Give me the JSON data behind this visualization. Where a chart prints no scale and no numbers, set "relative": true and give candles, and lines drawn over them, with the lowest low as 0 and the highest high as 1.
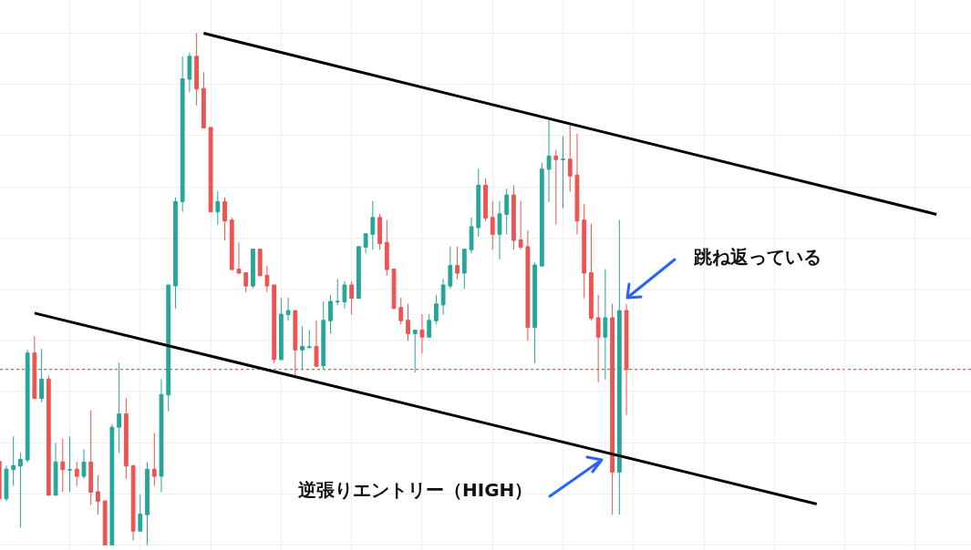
{
  "chart_data": {
    "type": "candlestick",
    "relative": true,
    "grid": true,
    "categories": [
      null,
      null,
      null,
      null,
      null,
      null,
      null,
      null,
      null,
      null,
      null,
      null,
      null,
      null,
      null,
      null,
      null,
      null,
      null,
      null,
      null,
      null,
      null,
      null,
      null,
      null,
      null,
      null,
      null,
      null,
      null,
      null,
      null,
      null,
      null,
      null,
      null,
      null,
      null,
      null,
      null,
      null,
      null,
      null,
      null,
      null,
      null,
      null,
      null,
      null,
      null,
      null,
      null,
      null,
      null,
      null,
      null,
      null,
      null,
      null,
      null,
      null,
      null,
      null,
      null,
      null,
      null,
      null,
      null,
      null,
      null,
      null,
      null,
      null,
      null,
      null,
      null,
      null,
      null,
      null,
      null,
      null,
      null,
      null,
      null,
      null,
      null,
      null,
      null,
      null,
      null,
      null,
      null,
      null,
      null,
      null,
      null,
      null,
      null,
      null,
      null,
      null,
      null,
      null,
      null,
      null,
      null,
      null,
      null,
      null,
      null,
      null,
      null,
      null,
      null,
      null,
      null,
      null,
      null,
      null,
      null,
      null,
      null,
      null,
      null,
      null,
      null,
      null,
      null,
      null,
      null,
      null,
      null,
      null,
      null,
      null,
      null,
      null,
      null
    ],
    "ohlc": [
      [
        0.163,
        0.163,
        0.09,
        0.09
      ],
      [
        0.09,
        0.155,
        0.085,
        0.148
      ],
      [
        0.147,
        0.212,
        0.115,
        0.155
      ],
      [
        0.154,
        0.18,
        0.034,
        0.167
      ],
      [
        0.166,
        0.382,
        0.161,
        0.375
      ],
      [
        0.375,
        0.408,
        0.286,
        0.286
      ],
      [
        0.286,
        0.383,
        0.279,
        0.324
      ],
      [
        0.324,
        0.331,
        0.097,
        0.097
      ],
      [
        0.097,
        0.199,
        0.097,
        0.162
      ],
      [
        0.162,
        0.207,
        0.103,
        0.147
      ],
      [
        0.146,
        0.212,
        0.103,
        0.147
      ],
      [
        0.148,
        0.162,
        0.115,
        0.134
      ],
      [
        0.134,
        0.187,
        0.129,
        0.162
      ],
      [
        0.162,
        0.263,
        0.078,
        0.103
      ],
      [
        0.104,
        0.136,
        0.059,
        0.085
      ],
      [
        0.086,
        0.086,
        0,
        0
      ],
      [
        0,
        0.236,
        0,
        0.23
      ],
      [
        0.23,
        0.356,
        0.179,
        0.256
      ],
      [
        0.256,
        0.287,
        0.129,
        0.154
      ],
      [
        0.155,
        0.155,
        0.009,
        0.027
      ],
      [
        0.027,
        0.099,
        0.027,
        0.06
      ],
      [
        0.059,
        0.162,
        0,
        0.148
      ],
      [
        0.148,
        0.219,
        0.115,
        0.134
      ],
      [
        0.134,
        0.324,
        0.103,
        0.294
      ],
      [
        0.293,
        0.508,
        0.261,
        0.508
      ],
      [
        0.506,
        0.679,
        0.462,
        0.671
      ],
      [
        0.671,
        0.955,
        0.651,
        0.911
      ],
      [
        0.91,
        0.962,
        0.885,
        0.955
      ],
      [
        0.955,
        1,
        0.859,
        0.891
      ],
      [
        0.892,
        0.924,
        0.815,
        0.815
      ],
      [
        0.816,
        0.816,
        0.651,
        0.651
      ],
      [
        0.651,
        0.691,
        0.626,
        0.671
      ],
      [
        0.671,
        0.679,
        0.595,
        0.633
      ],
      [
        0.635,
        0.64,
        0.538,
        0.538
      ],
      [
        0.539,
        0.591,
        0.531,
        0.531
      ],
      [
        0.532,
        0.532,
        0.494,
        0.506
      ],
      [
        0.506,
        0.578,
        0.502,
        0.578
      ],
      [
        0.578,
        0.578,
        0.526,
        0.526
      ],
      [
        0.527,
        0.546,
        0.494,
        0.506
      ],
      [
        0.508,
        0.508,
        0.355,
        0.362
      ],
      [
        0.362,
        0.483,
        0.362,
        0.451
      ],
      [
        0.45,
        0.483,
        0.438,
        0.458
      ],
      [
        0.458,
        0.458,
        0.33,
        0.381
      ],
      [
        0.381,
        0.427,
        0.343,
        0.388
      ],
      [
        0.386,
        0.42,
        0.383,
        0.387
      ],
      [
        0.388,
        0.439,
        0.349,
        0.349
      ],
      [
        0.35,
        0.476,
        0.343,
        0.439
      ],
      [
        0.438,
        0.488,
        0.413,
        0.476
      ],
      [
        0.475,
        0.52,
        0.469,
        0.476
      ],
      [
        0.475,
        0.515,
        0.462,
        0.508
      ],
      [
        0.508,
        0.515,
        0.45,
        0.482
      ],
      [
        0.482,
        0.583,
        0.482,
        0.583
      ],
      [
        0.582,
        0.608,
        0.57,
        0.608
      ],
      [
        0.607,
        0.672,
        0.577,
        0.64
      ],
      [
        0.64,
        0.647,
        0.577,
        0.589
      ],
      [
        0.591,
        0.635,
        0.526,
        0.538
      ],
      [
        0.539,
        0.539,
        0.462,
        0.462
      ],
      [
        0.464,
        0.483,
        0.431,
        0.438
      ],
      [
        0.439,
        0.471,
        0.399,
        0.413
      ],
      [
        0.413,
        0.42,
        0.337,
        0.42
      ],
      [
        0.42,
        0.451,
        0.374,
        0.406
      ],
      [
        0.406,
        0.451,
        0.406,
        0.439
      ],
      [
        0.438,
        0.488,
        0.431,
        0.471
      ],
      [
        0.469,
        0.52,
        0.45,
        0.508
      ],
      [
        0.506,
        0.583,
        0.501,
        0.546
      ],
      [
        0.546,
        0.583,
        0.519,
        0.531
      ],
      [
        0.531,
        0.578,
        0.501,
        0.578
      ],
      [
        0.577,
        0.64,
        0.57,
        0.622
      ],
      [
        0.62,
        0.735,
        0.602,
        0.703
      ],
      [
        0.703,
        0.716,
        0.633,
        0.639
      ],
      [
        0.64,
        0.672,
        0.577,
        0.607
      ],
      [
        0.607,
        0.672,
        0.558,
        0.647
      ],
      [
        0.646,
        0.696,
        0.607,
        0.684
      ],
      [
        0.684,
        0.703,
        0.577,
        0.595
      ],
      [
        0.596,
        0.672,
        0.577,
        0.582
      ],
      [
        0.583,
        0.615,
        0.399,
        0.425
      ],
      [
        0.425,
        0.552,
        0.355,
        0.547
      ],
      [
        0.545,
        0.747,
        0.545,
        0.735
      ],
      [
        0.734,
        0.83,
        0.67,
        0.76
      ],
      [
        0.76,
        0.772,
        0.626,
        0.753
      ],
      [
        0.753,
        0.799,
        0.658,
        0.754
      ],
      [
        0.754,
        0.824,
        0.69,
        0.721
      ],
      [
        0.723,
        0.804,
        0.607,
        0.633
      ],
      [
        0.635,
        0.666,
        0.482,
        0.531
      ],
      [
        0.532,
        0.628,
        0.438,
        0.443
      ],
      [
        0.444,
        0.489,
        0.318,
        0.406
      ],
      [
        0.406,
        0.539,
        0.323,
        0.444
      ],
      [
        0.444,
        0.471,
        0.059,
        0.142
      ],
      [
        0.142,
        0.635,
        0.059,
        0.458
      ],
      [
        0.458,
        0.471,
        0.254,
        0.343
      ],
      null,
      null,
      null,
      null,
      null,
      null,
      null,
      null,
      null,
      null,
      null,
      null,
      null,
      null,
      null,
      null,
      null,
      null,
      null,
      null,
      null,
      null,
      null,
      null,
      null,
      null,
      null,
      null,
      null,
      null,
      null,
      null,
      null,
      null,
      null,
      null,
      null,
      null,
      null,
      null,
      null,
      null,
      null,
      null,
      null,
      null,
      null,
      null,
      null
    ],
    "colors": [
      "#ef5350",
      "#26a69a",
      "#26a69a",
      "#26a69a",
      "#26a69a",
      "#ef5350",
      "#26a69a",
      "#ef5350",
      "#26a69a",
      "#ef5350",
      "#26a69a",
      "#ef5350",
      "#26a69a",
      "#ef5350",
      "#ef5350",
      "#ef5350",
      "#26a69a",
      "#26a69a",
      "#ef5350",
      "#ef5350",
      "#26a69a",
      "#26a69a",
      "#ef5350",
      "#26a69a",
      "#26a69a",
      "#26a69a",
      "#26a69a",
      "#26a69a",
      "#ef5350",
      "#ef5350",
      "#ef5350",
      "#26a69a",
      "#ef5350",
      "#ef5350",
      "#ef5350",
      "#ef5350",
      "#26a69a",
      "#ef5350",
      "#ef5350",
      "#ef5350",
      "#26a69a",
      "#26a69a",
      "#ef5350",
      "#26a69a",
      "#26a69a",
      "#ef5350",
      "#26a69a",
      "#26a69a",
      "#26a69a",
      "#26a69a",
      "#ef5350",
      "#26a69a",
      "#26a69a",
      "#26a69a",
      "#ef5350",
      "#ef5350",
      "#ef5350",
      "#ef5350",
      "#ef5350",
      "#26a69a",
      "#ef5350",
      "#26a69a",
      "#26a69a",
      "#26a69a",
      "#26a69a",
      "#ef5350",
      "#26a69a",
      "#26a69a",
      "#26a69a",
      "#ef5350",
      "#ef5350",
      "#26a69a",
      "#26a69a",
      "#ef5350",
      "#ef5350",
      "#ef5350",
      "#26a69a",
      "#26a69a",
      "#26a69a",
      "#ef5350",
      "#26a69a",
      "#ef5350",
      "#ef5350",
      "#ef5350",
      "#ef5350",
      "#ef5350",
      "#26a69a",
      "#ef5350",
      "#26a69a",
      "#ef5350",
      null,
      null,
      null,
      null,
      null,
      null,
      null,
      null,
      null,
      null,
      null,
      null,
      null,
      null,
      null,
      null,
      null,
      null,
      null,
      null,
      null,
      null,
      null,
      null,
      null,
      null,
      null,
      null,
      null,
      null,
      null,
      null,
      null,
      null,
      null,
      null,
      null,
      null,
      null,
      null,
      null,
      null,
      null,
      null,
      null,
      null,
      null,
      null,
      null
    ],
    "series": [
      {
        "type": "line",
        "color": "#000000",
        "values": [
          null,
          null,
          null,
          null,
          null,
          null,
          null,
          null,
          null,
          null,
          null,
          null,
          null,
          null,
          null,
          null,
          null,
          null,
          null,
          null,
          null,
          null,
          null,
          null,
          null,
          null,
          null,
          null,
          null,
          1,
          null,
          null,
          null,
          null,
          null,
          null,
          null,
          null,
          null,
          null,
          null,
          null,
          null,
          null,
          null,
          null,
          null,
          null,
          null,
          null,
          null,
          null,
          null,
          null,
          null,
          null,
          null,
          null,
          null,
          null,
          null,
          null,
          null,
          null,
          null,
          null,
          null,
          null,
          null,
          null,
          null,
          null,
          null,
          null,
          null,
          null,
          null,
          null,
          null,
          null,
          null,
          null,
          null,
          null,
          null,
          null,
          null,
          null,
          null,
          null,
          null,
          null,
          null,
          null,
          null,
          null,
          null,
          null,
          null,
          null,
          null,
          null,
          null,
          null,
          null,
          null,
          null,
          null,
          null,
          null,
          null,
          null,
          null,
          null,
          null,
          null,
          null,
          null,
          null,
          null,
          null,
          null,
          null,
          null,
          null,
          null,
          null,
          null,
          null,
          null,
          null,
          null,
          null,
          0.646,
          null,
          null,
          null,
          null,
          null
        ]
      },
      {
        "type": "line",
        "color": "#000000",
        "values": [
          null,
          null,
          null,
          null,
          null,
          0.453,
          null,
          null,
          null,
          null,
          null,
          null,
          null,
          null,
          null,
          null,
          null,
          null,
          null,
          null,
          null,
          null,
          null,
          null,
          null,
          null,
          null,
          null,
          null,
          null,
          null,
          null,
          null,
          null,
          null,
          null,
          null,
          null,
          null,
          null,
          null,
          null,
          null,
          null,
          null,
          null,
          null,
          null,
          null,
          null,
          null,
          null,
          null,
          null,
          null,
          null,
          null,
          null,
          null,
          null,
          null,
          null,
          null,
          null,
          null,
          null,
          null,
          null,
          null,
          null,
          null,
          null,
          null,
          null,
          null,
          null,
          null,
          null,
          null,
          null,
          null,
          null,
          null,
          null,
          null,
          null,
          null,
          null,
          null,
          null,
          null,
          null,
          null,
          null,
          null,
          null,
          null,
          null,
          null,
          null,
          null,
          null,
          null,
          null,
          null,
          null,
          null,
          null,
          null,
          null,
          null,
          null,
          null,
          null,
          null,
          null,
          0.08,
          null,
          null,
          null,
          null,
          null,
          null,
          null,
          null,
          null,
          null,
          null,
          null,
          null,
          null,
          null,
          null,
          null,
          null,
          null,
          null,
          null,
          null
        ]
      }
    ],
    "ref_lines": [
      {
        "axis": "y",
        "value": 0.343,
        "color": "#ef5350",
        "line_style": "dotted"
      }
    ],
    "annotations": [
      "跳ね返っている",
      "逆張りエントリー（HIGH）"
    ]
  }
}
